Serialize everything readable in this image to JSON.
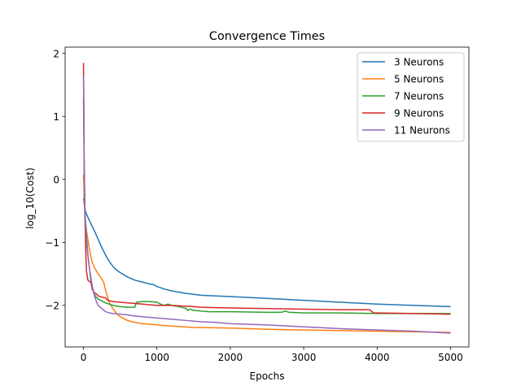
{
  "chart_data": {
    "type": "line",
    "title": "Convergence Times",
    "xlabel": "Epochs",
    "ylabel": "log_10(Cost)",
    "xlim": [
      -250,
      5250
    ],
    "ylim": [
      -2.66,
      2.1
    ],
    "xticks": [
      0,
      1000,
      2000,
      3000,
      4000,
      5000
    ],
    "yticks": [
      -2,
      -1,
      0,
      1,
      2
    ],
    "xtick_labels": [
      "0",
      "1000",
      "2000",
      "3000",
      "4000",
      "5000"
    ],
    "ytick_labels": [
      "−2",
      "−1",
      "0",
      "1",
      "2"
    ],
    "grid": false,
    "legend_position": "upper right",
    "series": [
      {
        "name": "3 Neurons",
        "color": "#1f77b4",
        "x": [
          0,
          15,
          30,
          60,
          100,
          150,
          200,
          250,
          300,
          350,
          400,
          450,
          500,
          600,
          700,
          800,
          900,
          950,
          1000,
          1100,
          1200,
          1400,
          1600,
          2000,
          2500,
          3000,
          3500,
          4000,
          4500,
          5000
        ],
        "y": [
          -0.3,
          -0.42,
          -0.52,
          -0.6,
          -0.7,
          -0.82,
          -0.95,
          -1.08,
          -1.2,
          -1.3,
          -1.38,
          -1.44,
          -1.48,
          -1.55,
          -1.6,
          -1.63,
          -1.66,
          -1.67,
          -1.7,
          -1.74,
          -1.77,
          -1.81,
          -1.84,
          -1.86,
          -1.89,
          -1.92,
          -1.95,
          -1.98,
          -2.0,
          -2.02
        ]
      },
      {
        "name": "5 Neurons",
        "color": "#ff7f0e",
        "x": [
          0,
          10,
          20,
          40,
          60,
          80,
          100,
          120,
          150,
          200,
          250,
          280,
          300,
          350,
          400,
          450,
          500,
          600,
          700,
          800,
          1000,
          1200,
          1500,
          2000,
          2500,
          3000,
          3500,
          4000,
          4500,
          5000
        ],
        "y": [
          0.08,
          -0.3,
          -0.6,
          -0.8,
          -0.95,
          -1.1,
          -1.22,
          -1.32,
          -1.4,
          -1.5,
          -1.58,
          -1.65,
          -1.76,
          -1.95,
          -2.05,
          -2.13,
          -2.18,
          -2.24,
          -2.27,
          -2.29,
          -2.31,
          -2.33,
          -2.35,
          -2.36,
          -2.38,
          -2.39,
          -2.4,
          -2.41,
          -2.42,
          -2.43
        ]
      },
      {
        "name": "7 Neurons",
        "color": "#2ca02c",
        "x": [
          0,
          10,
          20,
          40,
          60,
          80,
          100,
          130,
          160,
          200,
          250,
          300,
          350,
          400,
          500,
          600,
          700,
          720,
          800,
          900,
          1000,
          1050,
          1100,
          1150,
          1200,
          1300,
          1400,
          1420,
          1450,
          1500,
          1600,
          1700,
          2000,
          2500,
          2700,
          2750,
          2800,
          3000,
          3500,
          4000,
          4500,
          5000
        ],
        "y": [
          1.3,
          0.2,
          -0.5,
          -0.9,
          -1.2,
          -1.4,
          -1.6,
          -1.75,
          -1.85,
          -1.9,
          -1.93,
          -1.96,
          -1.98,
          -2.0,
          -2.02,
          -2.03,
          -2.03,
          -1.95,
          -1.94,
          -1.94,
          -1.95,
          -1.98,
          -2.0,
          -1.98,
          -2.0,
          -2.02,
          -2.05,
          -2.08,
          -2.06,
          -2.08,
          -2.09,
          -2.1,
          -2.1,
          -2.11,
          -2.11,
          -2.09,
          -2.11,
          -2.12,
          -2.12,
          -2.13,
          -2.13,
          -2.13
        ]
      },
      {
        "name": "9 Neurons",
        "color": "#d62728",
        "x": [
          0,
          5,
          10,
          20,
          30,
          40,
          60,
          80,
          100,
          120,
          150,
          180,
          200,
          250,
          300,
          330,
          400,
          500,
          600,
          800,
          1000,
          1200,
          1500,
          1600,
          2000,
          2500,
          3000,
          3500,
          3900,
          3950,
          4000,
          4500,
          5000
        ],
        "y": [
          1.85,
          1.2,
          0.2,
          -0.6,
          -1.1,
          -1.45,
          -1.6,
          -1.62,
          -1.63,
          -1.75,
          -1.8,
          -1.82,
          -1.85,
          -1.87,
          -1.88,
          -1.92,
          -1.94,
          -1.95,
          -1.96,
          -1.98,
          -2.0,
          -2.0,
          -2.02,
          -2.03,
          -2.04,
          -2.05,
          -2.06,
          -2.07,
          -2.07,
          -2.12,
          -2.12,
          -2.13,
          -2.14
        ]
      },
      {
        "name": "11 Neurons",
        "color": "#9467bd",
        "x": [
          0,
          5,
          10,
          20,
          30,
          40,
          60,
          80,
          100,
          120,
          150,
          180,
          200,
          250,
          300,
          350,
          400,
          500,
          600,
          700,
          800,
          1000,
          1200,
          1400,
          1600,
          1800,
          2000,
          2500,
          3000,
          3500,
          4000,
          4500,
          5000
        ],
        "y": [
          1.65,
          0.9,
          0.0,
          -0.5,
          -0.8,
          -1.0,
          -1.2,
          -1.4,
          -1.55,
          -1.7,
          -1.85,
          -1.95,
          -2.0,
          -2.05,
          -2.1,
          -2.12,
          -2.13,
          -2.14,
          -2.15,
          -2.17,
          -2.18,
          -2.2,
          -2.22,
          -2.24,
          -2.26,
          -2.27,
          -2.29,
          -2.31,
          -2.34,
          -2.37,
          -2.39,
          -2.41,
          -2.44
        ]
      }
    ]
  }
}
